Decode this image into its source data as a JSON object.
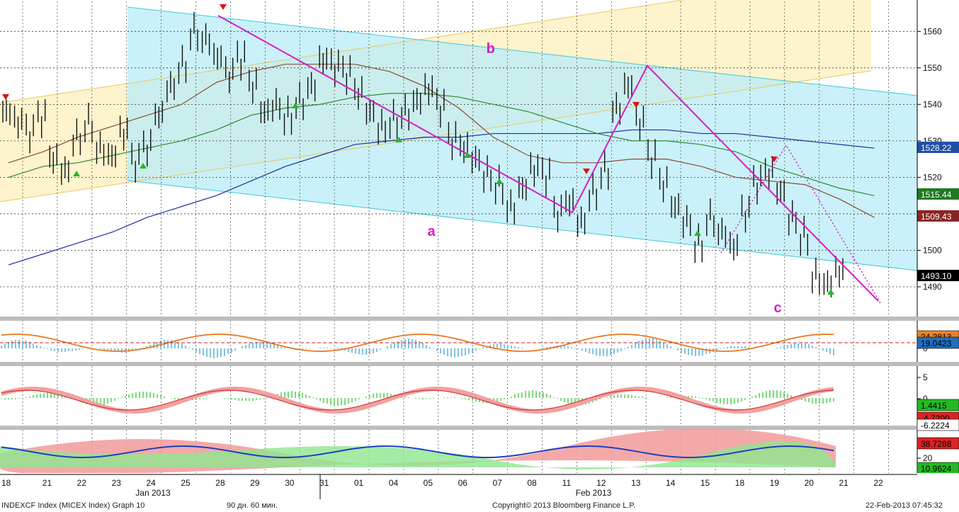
{
  "chart_data": {
    "type": "line",
    "title": "",
    "main_panel": {
      "y_ticks": [
        1490,
        1500,
        1510,
        1520,
        1530,
        1540,
        1550,
        1560
      ],
      "ylim": [
        1481,
        1567
      ],
      "price_badges": [
        {
          "label": "1528.22",
          "value": 1528.22,
          "color": "#1f4fa8"
        },
        {
          "label": "1515.44",
          "value": 1515.44,
          "color": "#1e7a1e"
        },
        {
          "label": "1509.43",
          "value": 1509.43,
          "color": "#8b2323"
        },
        {
          "label": "1493.10",
          "value": 1493.1,
          "color": "#000000"
        }
      ],
      "wave_labels": [
        {
          "text": "a",
          "x_index": 12.3,
          "y": 1504
        },
        {
          "text": "b",
          "x_index": 14.0,
          "y": 1554
        },
        {
          "text": "c",
          "x_index": 22.3,
          "y": 1483
        }
      ]
    },
    "panels": [
      {
        "name": "oscillator-1",
        "ticks": [
          "0"
        ],
        "badges": [
          {
            "label": "24.2813",
            "color": "#f08020"
          },
          {
            "label": "19.0423",
            "color": "#1f6fbf"
          }
        ]
      },
      {
        "name": "oscillator-2",
        "ticks": [
          "5",
          "0",
          "-5"
        ],
        "badges": [
          {
            "label": "1.4415",
            "color": "#22bb22"
          },
          {
            "label": "-4.7200",
            "color": "#dd2222"
          },
          {
            "label": "-6.2224",
            "color": "#ffffff"
          }
        ]
      },
      {
        "name": "oscillator-3",
        "ticks": [
          "20"
        ],
        "badges": [
          {
            "label": "38.7288",
            "color": "#dd2222"
          },
          {
            "label": "10.9624",
            "color": "#22bb22"
          }
        ]
      }
    ],
    "x_tick_labels": [
      "18",
      "21",
      "22",
      "23",
      "24",
      "25",
      "28",
      "29",
      "30",
      "31",
      "01",
      "04",
      "05",
      "06",
      "07",
      "08",
      "11",
      "12",
      "13",
      "14",
      "15",
      "18",
      "19",
      "20",
      "21",
      "22"
    ],
    "month_labels": [
      "Jan 2013",
      "Feb 2013"
    ],
    "series": [
      {
        "name": "",
        "color": "#1f2f9f",
        "values": [
          1496,
          1499,
          1502,
          1505,
          1509,
          1512,
          1515,
          1519,
          1523,
          1526,
          1529,
          1530,
          1531,
          1531,
          1532,
          1532,
          1532,
          1532,
          1533,
          1533,
          1532,
          1532,
          1531,
          1530,
          1529,
          1528
        ]
      },
      {
        "name": "",
        "color": "#2e8b2e",
        "values": [
          1520,
          1523,
          1524,
          1526,
          1528,
          1530,
          1533,
          1537,
          1539,
          1540,
          1542,
          1543,
          1543,
          1542,
          1540,
          1538,
          1535,
          1532,
          1530,
          1530,
          1529,
          1527,
          1523,
          1520,
          1517,
          1515
        ]
      },
      {
        "name": "",
        "color": "#8b4a3a",
        "values": [
          1524,
          1527,
          1531,
          1534,
          1537,
          1540,
          1546,
          1549,
          1551,
          1551,
          1551,
          1549,
          1545,
          1539,
          1531,
          1526,
          1524,
          1524,
          1525,
          1525,
          1523,
          1520,
          1519,
          1518,
          1514,
          1509
        ]
      }
    ]
  },
  "footer": {
    "left": "INDEXCF Index (MICEX Index) Graph 10",
    "period": "90 дн. 60 мин.",
    "copyright": "Copyright© 2013 Bloomberg Finance L.P.",
    "date": "22-Feb-2013 07:45:32"
  }
}
